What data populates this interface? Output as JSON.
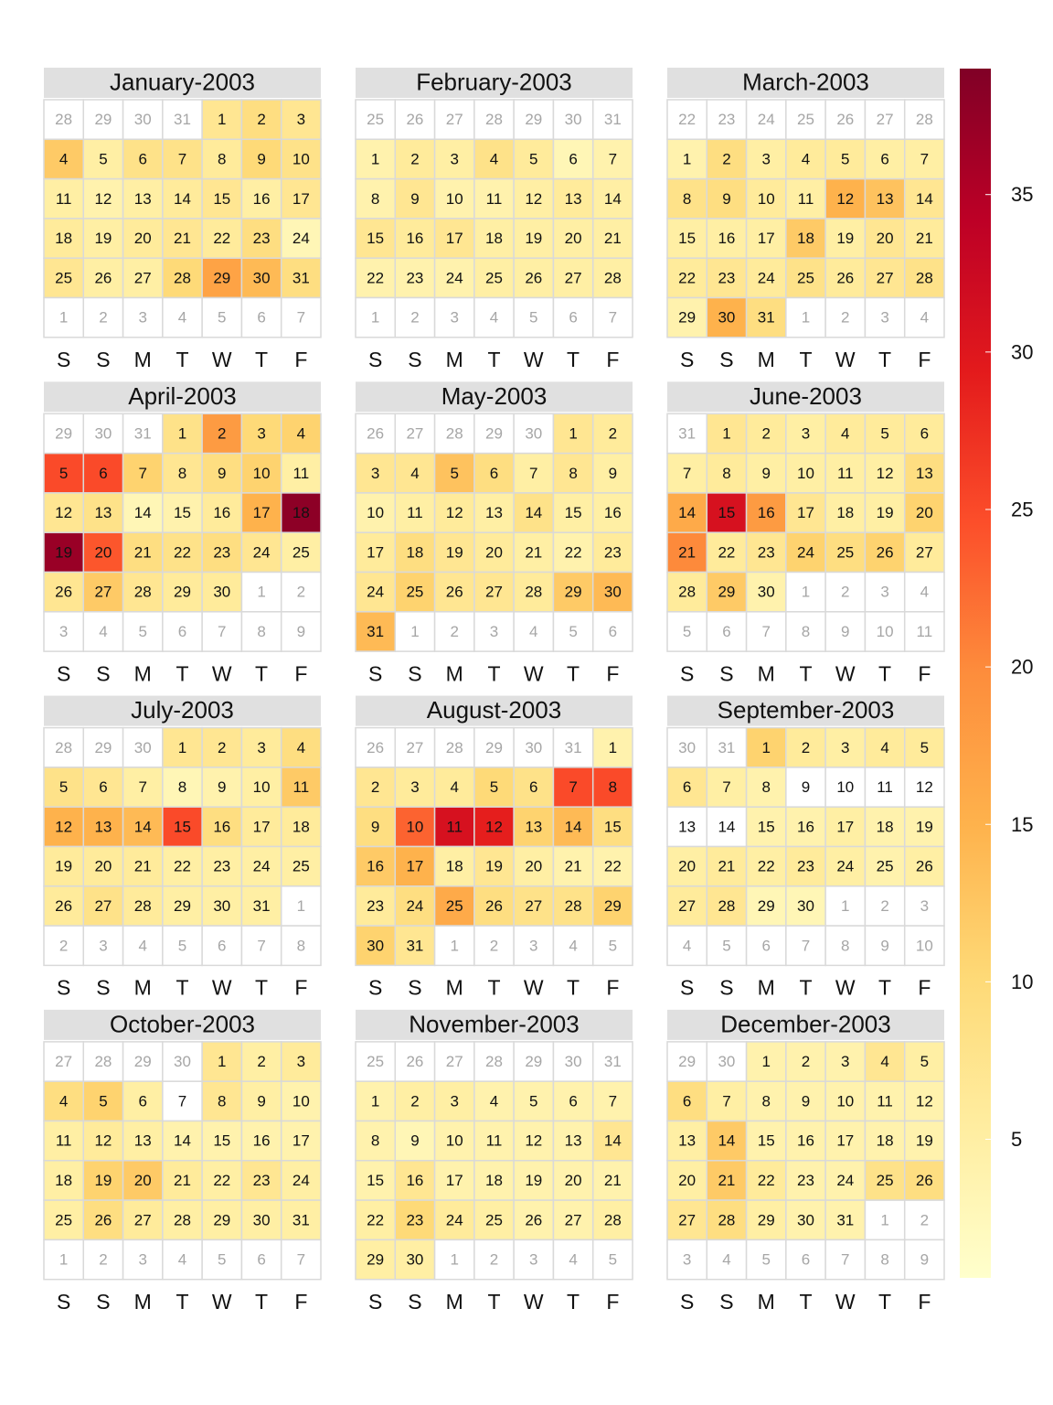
{
  "chart_data": {
    "type": "calendar_heatmap",
    "weekdays": [
      "S",
      "S",
      "M",
      "T",
      "W",
      "T",
      "F"
    ],
    "months": [
      {
        "title": "January-2003",
        "days": [
          28,
          29,
          30,
          31,
          1,
          2,
          3,
          4,
          5,
          6,
          7,
          8,
          9,
          10,
          11,
          12,
          13,
          14,
          15,
          16,
          17,
          18,
          19,
          20,
          21,
          22,
          23,
          24,
          25,
          26,
          27,
          28,
          29,
          30,
          31,
          1,
          2,
          3,
          4,
          5,
          6,
          7
        ],
        "values": [
          null,
          null,
          null,
          null,
          7,
          9,
          7,
          12,
          5,
          8,
          8,
          6,
          10,
          8,
          5,
          4,
          5,
          6,
          7,
          5,
          7,
          6,
          5,
          6,
          7,
          6,
          9,
          3,
          7,
          5,
          5,
          10,
          17,
          14,
          9,
          null,
          null,
          null,
          null,
          null,
          null,
          null
        ]
      },
      {
        "title": "February-2003",
        "days": [
          25,
          26,
          27,
          28,
          29,
          30,
          31,
          1,
          2,
          3,
          4,
          5,
          6,
          7,
          8,
          9,
          10,
          11,
          12,
          13,
          14,
          15,
          16,
          17,
          18,
          19,
          20,
          21,
          22,
          23,
          24,
          25,
          26,
          27,
          28,
          1,
          2,
          3,
          4,
          5,
          6,
          7
        ],
        "values": [
          null,
          null,
          null,
          null,
          null,
          null,
          null,
          4,
          6,
          5,
          8,
          6,
          3,
          4,
          4,
          7,
          4,
          4,
          5,
          6,
          5,
          7,
          6,
          7,
          5,
          5,
          5,
          5,
          4,
          4,
          4,
          5,
          5,
          5,
          5,
          null,
          null,
          null,
          null,
          null,
          null,
          null
        ]
      },
      {
        "title": "March-2003",
        "days": [
          22,
          23,
          24,
          25,
          26,
          27,
          28,
          1,
          2,
          3,
          4,
          5,
          6,
          7,
          8,
          9,
          10,
          11,
          12,
          13,
          14,
          15,
          16,
          17,
          18,
          19,
          20,
          21,
          22,
          23,
          24,
          25,
          26,
          27,
          28,
          29,
          30,
          31,
          1,
          2,
          3,
          4
        ],
        "values": [
          null,
          null,
          null,
          null,
          null,
          null,
          null,
          4,
          9,
          5,
          6,
          6,
          5,
          5,
          8,
          9,
          6,
          5,
          15,
          13,
          7,
          5,
          5,
          5,
          12,
          5,
          7,
          6,
          6,
          7,
          6,
          8,
          6,
          7,
          8,
          4,
          15,
          9,
          null,
          null,
          null,
          null
        ]
      },
      {
        "title": "April-2003",
        "days": [
          29,
          30,
          31,
          1,
          2,
          3,
          4,
          5,
          6,
          7,
          8,
          9,
          10,
          11,
          12,
          13,
          14,
          15,
          16,
          17,
          18,
          19,
          20,
          21,
          22,
          23,
          24,
          25,
          26,
          27,
          28,
          29,
          30,
          1,
          2,
          3,
          4,
          5,
          6,
          7,
          8,
          9
        ],
        "values": [
          null,
          null,
          null,
          8,
          18,
          10,
          11,
          25,
          25,
          11,
          7,
          9,
          11,
          5,
          7,
          8,
          3,
          4,
          6,
          15,
          38,
          37,
          24,
          9,
          8,
          9,
          7,
          5,
          7,
          12,
          7,
          6,
          6,
          null,
          null,
          null,
          null,
          null,
          null,
          null,
          null,
          null
        ]
      },
      {
        "title": "May-2003",
        "days": [
          26,
          27,
          28,
          29,
          30,
          1,
          2,
          3,
          4,
          5,
          6,
          7,
          8,
          9,
          10,
          11,
          12,
          13,
          14,
          15,
          16,
          17,
          18,
          19,
          20,
          21,
          22,
          23,
          24,
          25,
          26,
          27,
          28,
          29,
          30,
          31,
          1,
          2,
          3,
          4,
          5,
          6
        ],
        "values": [
          null,
          null,
          null,
          null,
          null,
          7,
          6,
          7,
          7,
          13,
          9,
          5,
          7,
          5,
          4,
          5,
          6,
          5,
          8,
          5,
          5,
          6,
          9,
          7,
          6,
          5,
          4,
          6,
          7,
          11,
          7,
          7,
          6,
          12,
          14,
          14,
          null,
          null,
          null,
          null,
          null,
          null
        ]
      },
      {
        "title": "June-2003",
        "days": [
          31,
          1,
          2,
          3,
          4,
          5,
          6,
          7,
          8,
          9,
          10,
          11,
          12,
          13,
          14,
          15,
          16,
          17,
          18,
          19,
          20,
          21,
          22,
          23,
          24,
          25,
          26,
          27,
          28,
          29,
          30,
          1,
          2,
          3,
          4,
          5,
          6,
          7,
          8,
          9,
          10,
          11
        ],
        "values": [
          null,
          7,
          6,
          5,
          6,
          6,
          6,
          5,
          6,
          5,
          5,
          5,
          5,
          9,
          16,
          31,
          18,
          7,
          5,
          5,
          11,
          20,
          6,
          7,
          11,
          9,
          11,
          6,
          6,
          12,
          4,
          null,
          null,
          null,
          null,
          null,
          null,
          null,
          null,
          null,
          null,
          null
        ]
      },
      {
        "title": "July-2003",
        "days": [
          28,
          29,
          30,
          1,
          2,
          3,
          4,
          5,
          6,
          7,
          8,
          9,
          10,
          11,
          12,
          13,
          14,
          15,
          16,
          17,
          18,
          19,
          20,
          21,
          22,
          23,
          24,
          25,
          26,
          27,
          28,
          29,
          30,
          31,
          1,
          2,
          3,
          4,
          5,
          6,
          7,
          8
        ],
        "values": [
          null,
          null,
          null,
          7,
          7,
          6,
          9,
          8,
          7,
          5,
          3,
          4,
          5,
          12,
          15,
          15,
          14,
          25,
          9,
          6,
          6,
          6,
          6,
          6,
          5,
          5,
          5,
          5,
          6,
          8,
          6,
          5,
          5,
          5,
          null,
          null,
          null,
          null,
          null,
          null,
          null,
          null
        ]
      },
      {
        "title": "August-2003",
        "days": [
          26,
          27,
          28,
          29,
          30,
          31,
          1,
          2,
          3,
          4,
          5,
          6,
          7,
          8,
          9,
          10,
          11,
          12,
          13,
          14,
          15,
          16,
          17,
          18,
          19,
          20,
          21,
          22,
          23,
          24,
          25,
          26,
          27,
          28,
          29,
          30,
          31,
          1,
          2,
          3,
          4,
          5
        ],
        "values": [
          null,
          null,
          null,
          null,
          null,
          null,
          4,
          7,
          6,
          6,
          10,
          8,
          25,
          25,
          9,
          23,
          31,
          29,
          11,
          14,
          9,
          12,
          15,
          5,
          7,
          5,
          4,
          4,
          6,
          9,
          16,
          9,
          8,
          8,
          11,
          11,
          7,
          null,
          null,
          null,
          null,
          null
        ]
      },
      {
        "title": "September-2003",
        "days": [
          30,
          31,
          1,
          2,
          3,
          4,
          5,
          6,
          7,
          8,
          9,
          10,
          11,
          12,
          13,
          14,
          15,
          16,
          17,
          18,
          19,
          20,
          21,
          22,
          23,
          24,
          25,
          26,
          27,
          28,
          29,
          30,
          1,
          2,
          3,
          4,
          5,
          6,
          7,
          8,
          9,
          10
        ],
        "values": [
          null,
          null,
          11,
          6,
          5,
          6,
          6,
          7,
          5,
          4,
          null,
          null,
          null,
          null,
          null,
          null,
          4,
          4,
          5,
          4,
          4,
          5,
          6,
          5,
          6,
          5,
          4,
          5,
          6,
          7,
          3,
          3,
          null,
          null,
          null,
          null,
          null,
          null,
          null,
          null,
          null,
          null
        ]
      },
      {
        "title": "October-2003",
        "days": [
          27,
          28,
          29,
          30,
          1,
          2,
          3,
          4,
          5,
          6,
          7,
          8,
          9,
          10,
          11,
          12,
          13,
          14,
          15,
          16,
          17,
          18,
          19,
          20,
          21,
          22,
          23,
          24,
          25,
          26,
          27,
          28,
          29,
          30,
          31,
          1,
          2,
          3,
          4,
          5,
          6,
          7
        ],
        "values": [
          null,
          null,
          null,
          null,
          7,
          5,
          6,
          9,
          11,
          5,
          null,
          7,
          5,
          4,
          5,
          6,
          5,
          4,
          4,
          4,
          4,
          5,
          11,
          12,
          6,
          5,
          7,
          5,
          5,
          9,
          6,
          5,
          5,
          5,
          5,
          null,
          null,
          null,
          null,
          null,
          null,
          null
        ]
      },
      {
        "title": "November-2003",
        "days": [
          25,
          26,
          27,
          28,
          29,
          30,
          31,
          1,
          2,
          3,
          4,
          5,
          6,
          7,
          8,
          9,
          10,
          11,
          12,
          13,
          14,
          15,
          16,
          17,
          18,
          19,
          20,
          21,
          22,
          23,
          24,
          25,
          26,
          27,
          28,
          29,
          30,
          1,
          2,
          3,
          4,
          5
        ],
        "values": [
          null,
          null,
          null,
          null,
          null,
          null,
          null,
          4,
          5,
          5,
          4,
          4,
          4,
          4,
          4,
          3,
          4,
          4,
          4,
          4,
          7,
          4,
          7,
          4,
          4,
          4,
          4,
          4,
          5,
          10,
          6,
          5,
          4,
          4,
          5,
          5,
          5,
          null,
          null,
          null,
          null,
          null
        ]
      },
      {
        "title": "December-2003",
        "days": [
          29,
          30,
          1,
          2,
          3,
          4,
          5,
          6,
          7,
          8,
          9,
          10,
          11,
          12,
          13,
          14,
          15,
          16,
          17,
          18,
          19,
          20,
          21,
          22,
          23,
          24,
          25,
          26,
          27,
          28,
          29,
          30,
          31,
          1,
          2,
          3,
          4,
          5,
          6,
          7,
          8,
          9
        ],
        "values": [
          null,
          null,
          4,
          4,
          4,
          7,
          5,
          9,
          5,
          4,
          4,
          4,
          4,
          4,
          5,
          12,
          4,
          4,
          4,
          4,
          4,
          5,
          12,
          6,
          4,
          4,
          8,
          9,
          7,
          9,
          5,
          4,
          4,
          null,
          null,
          null,
          null,
          null,
          null,
          null,
          null,
          null
        ]
      }
    ],
    "colorbar": {
      "zlim": [
        0.6,
        39
      ],
      "ticks": [
        5,
        10,
        15,
        20,
        25,
        30,
        35
      ],
      "colors": [
        "#ffffcc",
        "#ffeda0",
        "#fed976",
        "#feb24c",
        "#fd8d3c",
        "#fc4e2a",
        "#e31a1c",
        "#bd0026",
        "#800026"
      ]
    }
  }
}
